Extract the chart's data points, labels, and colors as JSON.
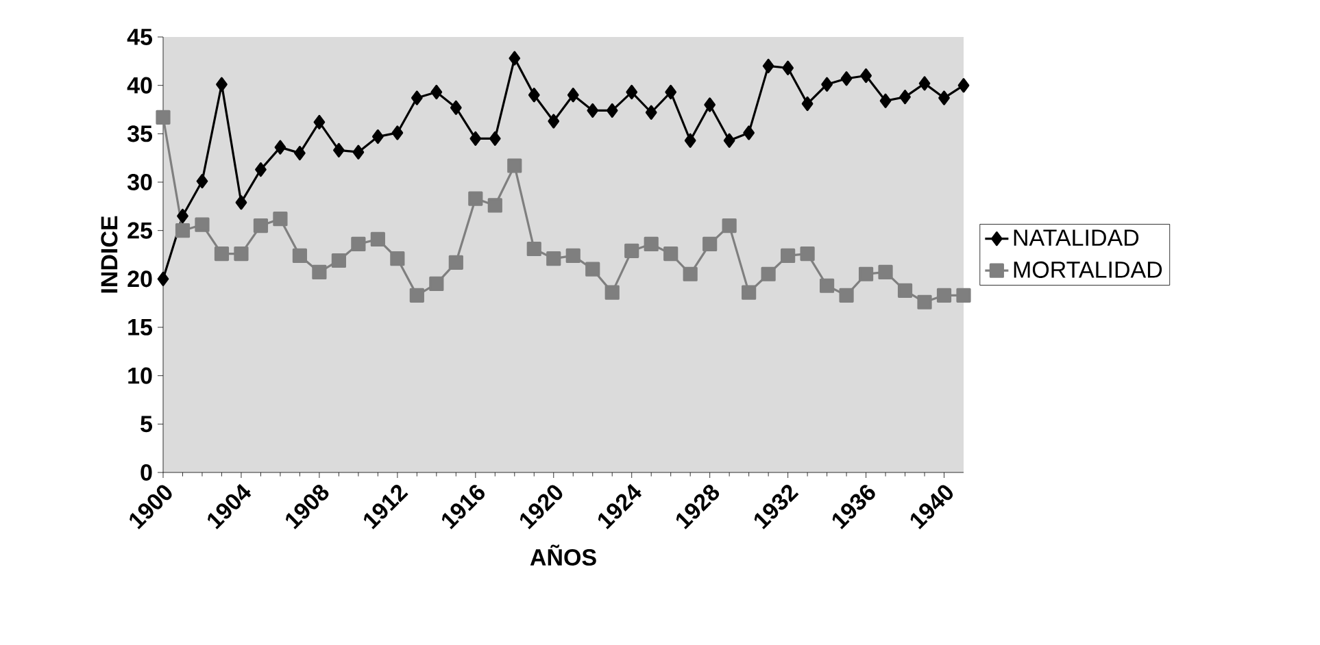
{
  "chart_data": {
    "type": "line",
    "xlabel": "AÑOS",
    "ylabel": "INDICE",
    "x": [
      1900,
      1901,
      1902,
      1903,
      1904,
      1905,
      1906,
      1907,
      1908,
      1909,
      1910,
      1911,
      1912,
      1913,
      1914,
      1915,
      1916,
      1917,
      1918,
      1919,
      1920,
      1921,
      1922,
      1923,
      1924,
      1925,
      1926,
      1927,
      1928,
      1929,
      1930,
      1931,
      1932,
      1933,
      1934,
      1935,
      1936,
      1937,
      1938,
      1939,
      1940,
      1941
    ],
    "xlim": [
      1900,
      1941
    ],
    "xticks": [
      1900,
      1904,
      1908,
      1912,
      1916,
      1920,
      1924,
      1928,
      1932,
      1936,
      1940
    ],
    "ylim": [
      0,
      45
    ],
    "yticks": [
      0,
      5,
      10,
      15,
      20,
      25,
      30,
      35,
      40,
      45
    ],
    "grid": false,
    "legend": "right",
    "line_style": "solid",
    "series": [
      {
        "name": "NATALIDAD",
        "color": "#000000",
        "marker": "diamond",
        "values": [
          20.0,
          26.5,
          30.1,
          40.1,
          27.9,
          31.3,
          33.6,
          33.0,
          36.2,
          33.3,
          33.1,
          34.7,
          35.1,
          38.7,
          39.3,
          37.7,
          34.5,
          34.5,
          42.8,
          39.0,
          36.3,
          39.0,
          37.4,
          37.4,
          39.3,
          37.2,
          39.3,
          34.3,
          38.0,
          34.3,
          35.1,
          42.0,
          41.8,
          38.1,
          40.1,
          40.7,
          41.0,
          38.4,
          38.8,
          40.2,
          38.7,
          40.0
        ]
      },
      {
        "name": "MORTALIDAD",
        "color": "#7f7f7f",
        "marker": "square",
        "values": [
          36.7,
          25.0,
          25.6,
          22.6,
          22.6,
          25.5,
          26.2,
          22.4,
          20.7,
          21.9,
          23.6,
          24.1,
          22.1,
          18.3,
          19.5,
          21.7,
          28.3,
          27.6,
          31.7,
          23.1,
          22.1,
          22.4,
          21.0,
          18.6,
          22.9,
          23.6,
          22.6,
          20.5,
          23.6,
          25.5,
          18.6,
          20.5,
          22.4,
          22.6,
          19.3,
          18.3,
          20.5,
          20.7,
          18.8,
          17.6,
          18.3,
          18.3
        ]
      }
    ]
  }
}
